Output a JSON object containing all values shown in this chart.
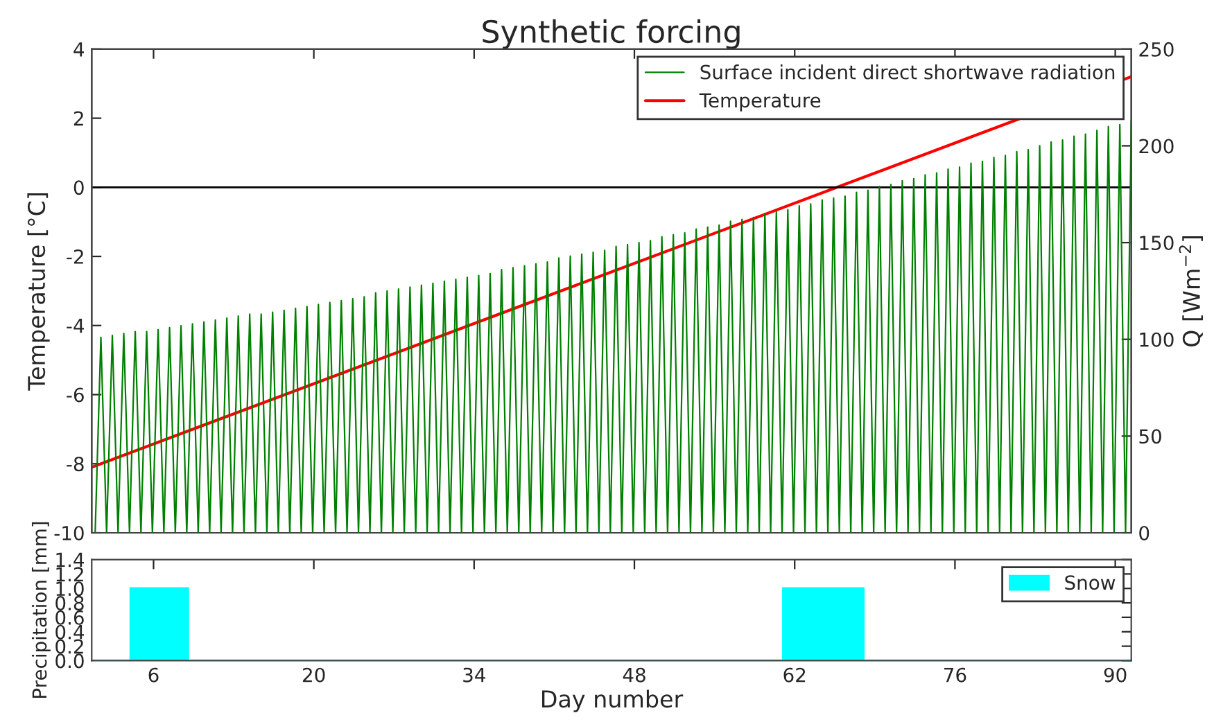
{
  "chart_data": [
    {
      "type": "line",
      "title": "Synthetic forcing",
      "ylabel": "Temperature [°C]",
      "y2label": "Q [Wm$^{−2}$]",
      "xlim": [
        0.6,
        91.4
      ],
      "xticks": [
        {
          "value": 6,
          "label": null
        },
        {
          "value": 20,
          "label": null
        },
        {
          "value": 34,
          "label": null
        },
        {
          "value": 48,
          "label": null
        },
        {
          "value": 62,
          "label": null
        },
        {
          "value": 76,
          "label": null
        },
        {
          "value": 90,
          "label": null
        }
      ],
      "ylim": [
        -10,
        4
      ],
      "yticks": [
        -10,
        -8,
        -6,
        -4,
        -2,
        0,
        2,
        4
      ],
      "y2lim": [
        0,
        250
      ],
      "y2ticks": [
        0,
        50,
        100,
        150,
        200,
        250
      ],
      "tick_labels": "y",
      "legend": "top right",
      "ref_lines": [
        {
          "axis": "y",
          "value": 0,
          "color": "#000000"
        }
      ],
      "series": [
        {
          "name": "Surface incident direct shortwave radiation",
          "color": "#008000",
          "axis": "y2",
          "x": [
            0.9,
            1.4,
            1.9,
            2.4,
            2.9,
            3.4,
            3.9,
            4.4,
            4.9,
            5.4,
            5.9,
            6.4,
            6.9,
            7.4,
            7.9,
            8.4,
            8.9,
            9.4,
            9.9,
            10.4,
            10.9,
            11.4,
            11.9,
            12.4,
            12.9,
            13.4,
            13.9,
            14.4,
            14.9,
            15.4,
            15.9,
            16.4,
            16.9,
            17.4,
            17.9,
            18.4,
            18.9,
            19.4,
            19.9,
            20.4,
            20.9,
            21.4,
            21.9,
            22.4,
            22.9,
            23.4,
            23.9,
            24.4,
            24.9,
            25.4,
            25.9,
            26.4,
            26.9,
            27.4,
            27.9,
            28.4,
            28.9,
            29.4,
            29.9,
            30.4,
            30.9,
            31.4,
            31.9,
            32.4,
            32.9,
            33.4,
            33.9,
            34.4,
            34.9,
            35.4,
            35.9,
            36.4,
            36.9,
            37.4,
            37.9,
            38.4,
            38.9,
            39.4,
            39.9,
            40.4,
            40.9,
            41.4,
            41.9,
            42.4,
            42.9,
            43.4,
            43.9,
            44.4,
            44.9,
            45.4,
            45.9,
            46.4,
            46.9,
            47.4,
            47.9,
            48.4,
            48.9,
            49.4,
            49.9,
            50.4,
            50.9,
            51.4,
            51.9,
            52.4,
            52.9,
            53.4,
            53.9,
            54.4,
            54.9,
            55.4,
            55.9,
            56.4,
            56.9,
            57.4,
            57.9,
            58.4,
            58.9,
            59.4,
            59.9,
            60.4,
            60.9,
            61.4,
            61.9,
            62.4,
            62.9,
            63.4,
            63.9,
            64.4,
            64.9,
            65.4,
            65.9,
            66.4,
            66.9,
            67.4,
            67.9,
            68.4,
            68.9,
            69.4,
            69.9,
            70.4,
            70.9,
            71.4,
            71.9,
            72.4,
            72.9,
            73.4,
            73.9,
            74.4,
            74.9,
            75.4,
            75.9,
            76.4,
            76.9,
            77.4,
            77.9,
            78.4,
            78.9,
            79.4,
            79.9,
            80.4,
            80.9,
            81.4,
            81.9,
            82.4,
            82.9,
            83.4,
            83.9,
            84.4,
            84.9,
            85.4,
            85.9,
            86.4,
            86.9,
            87.4,
            87.9,
            88.4,
            88.9,
            89.4,
            89.9,
            90.4,
            90.9,
            91.4
          ],
          "values": [
            0,
            101,
            0,
            102,
            0,
            103,
            0,
            104,
            0,
            104,
            0,
            105,
            0,
            106,
            0,
            107,
            0,
            108,
            0,
            109,
            0,
            110,
            0,
            111,
            0,
            112,
            0,
            113,
            0,
            113,
            0,
            114,
            0,
            115,
            0,
            116,
            0,
            117,
            0,
            118,
            0,
            119,
            0,
            120,
            0,
            121,
            0,
            122,
            0,
            124,
            0,
            125,
            0,
            126,
            0,
            127,
            0,
            128,
            0,
            129,
            0,
            130,
            0,
            131,
            0,
            132,
            0,
            133,
            0,
            134,
            0,
            136,
            0,
            137,
            0,
            138,
            0,
            139,
            0,
            140,
            0,
            142,
            0,
            143,
            0,
            144,
            0,
            145,
            0,
            146,
            0,
            148,
            0,
            149,
            0,
            150,
            0,
            151,
            0,
            153,
            0,
            154,
            0,
            155,
            0,
            157,
            0,
            158,
            0,
            159,
            0,
            161,
            0,
            162,
            0,
            163,
            0,
            165,
            0,
            166,
            0,
            167,
            0,
            169,
            0,
            170,
            0,
            172,
            0,
            173,
            0,
            174,
            0,
            176,
            0,
            177,
            0,
            179,
            0,
            180,
            0,
            182,
            0,
            183,
            0,
            185,
            0,
            186,
            0,
            188,
            0,
            189,
            0,
            191,
            0,
            192,
            0,
            194,
            0,
            195,
            0,
            197,
            0,
            198,
            0,
            200,
            0,
            202,
            0,
            203,
            0,
            205,
            0,
            206,
            0,
            208,
            0,
            210,
            0,
            211,
            0,
            213
          ]
        },
        {
          "name": "Temperature",
          "color": "#ff0000",
          "x": [
            0.6,
            91.4
          ],
          "values": [
            -8.1,
            3.2
          ]
        }
      ]
    },
    {
      "type": "histogram",
      "xlabel": "Day number",
      "ylabel": "Precipitation [mm]",
      "xlim": [
        0.6,
        91.4
      ],
      "xticks": [
        6,
        20,
        34,
        48,
        62,
        76,
        90
      ],
      "ylim": [
        0,
        1.4
      ],
      "yticks": [
        {
          "value": 0,
          "label": "0.0"
        },
        {
          "value": 0.2,
          "label": "0.2"
        },
        {
          "value": 0.4,
          "label": "0.4"
        },
        {
          "value": 0.6,
          "label": "0.6"
        },
        {
          "value": 0.8,
          "label": "0.8"
        },
        {
          "value": 1.0,
          "label": "1.0"
        },
        {
          "value": 1.2,
          "label": "1.2"
        },
        {
          "value": 1.4,
          "label": "1.4"
        }
      ],
      "legend": "top right",
      "bins": [
        0.6,
        4,
        9,
        61,
        68,
        91.4
      ],
      "series": [
        {
          "name": "Snow",
          "color": "#00ffff",
          "values": [
            0,
            1,
            0,
            1,
            0
          ]
        }
      ]
    }
  ]
}
